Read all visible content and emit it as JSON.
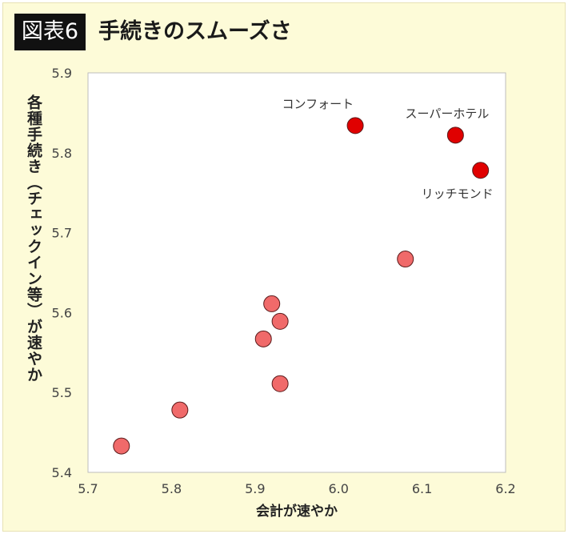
{
  "header": {
    "badge": "図表6",
    "title": "手続きのスムーズさ"
  },
  "chart_data": {
    "type": "scatter",
    "title": "手続きのスムーズさ",
    "xlabel": "会計が速やか",
    "ylabel": "各種手続き（チェックイン等）が速やか",
    "xlim": [
      5.7,
      6.2
    ],
    "ylim": [
      5.4,
      5.9
    ],
    "xticks": [
      "5.7",
      "5.8",
      "5.9",
      "6.0",
      "6.1",
      "6.2"
    ],
    "yticks": [
      "5.4",
      "5.5",
      "5.6",
      "5.7",
      "5.8",
      "5.9"
    ],
    "grid": false,
    "points": [
      {
        "x": 6.02,
        "y": 5.834,
        "label": "コンフォート",
        "highlight": true
      },
      {
        "x": 6.14,
        "y": 5.822,
        "label": "スーパーホテル",
        "highlight": true
      },
      {
        "x": 6.17,
        "y": 5.778,
        "label": "リッチモンド",
        "highlight": true
      },
      {
        "x": 6.08,
        "y": 5.667,
        "label": "",
        "highlight": false
      },
      {
        "x": 5.92,
        "y": 5.611,
        "label": "",
        "highlight": false
      },
      {
        "x": 5.93,
        "y": 5.589,
        "label": "",
        "highlight": false
      },
      {
        "x": 5.91,
        "y": 5.567,
        "label": "",
        "highlight": false
      },
      {
        "x": 5.93,
        "y": 5.511,
        "label": "",
        "highlight": false
      },
      {
        "x": 5.81,
        "y": 5.478,
        "label": "",
        "highlight": false
      },
      {
        "x": 5.74,
        "y": 5.433,
        "label": "",
        "highlight": false
      }
    ],
    "colors": {
      "highlight": "#e00000",
      "normal": "#f06a6a",
      "marker_edge": "#5a1a1a",
      "plot_border": "#bdbdbd",
      "plot_bg": "#ffffff"
    }
  }
}
